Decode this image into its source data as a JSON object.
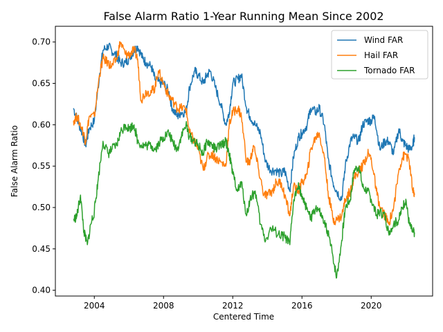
{
  "chart_data": {
    "type": "line",
    "title": "False Alarm Ratio 1-Year Running Mean Since 2002",
    "xlabel": "Centered Time",
    "ylabel": "False Alarm Ratio",
    "xlim": [
      2001.75,
      2023.55
    ],
    "ylim": [
      0.393,
      0.719
    ],
    "x_ticks": [
      2004,
      2008,
      2012,
      2016,
      2020
    ],
    "y_ticks": [
      0.4,
      0.45,
      0.5,
      0.55,
      0.6,
      0.65,
      0.7
    ],
    "y_tick_labels": [
      "0.40",
      "0.45",
      "0.50",
      "0.55",
      "0.60",
      "0.65",
      "0.70"
    ],
    "grid": false,
    "legend": "top-right",
    "series": [
      {
        "name": "Wind FAR",
        "color": "#1f77b4",
        "points": [
          [
            2002.8,
            0.62
          ],
          [
            2003.0,
            0.607
          ],
          [
            2003.3,
            0.59
          ],
          [
            2003.5,
            0.575
          ],
          [
            2003.7,
            0.595
          ],
          [
            2004.0,
            0.605
          ],
          [
            2004.3,
            0.66
          ],
          [
            2004.5,
            0.69
          ],
          [
            2004.8,
            0.695
          ],
          [
            2005.0,
            0.69
          ],
          [
            2005.3,
            0.683
          ],
          [
            2005.5,
            0.675
          ],
          [
            2005.8,
            0.675
          ],
          [
            2006.0,
            0.68
          ],
          [
            2006.3,
            0.69
          ],
          [
            2006.5,
            0.695
          ],
          [
            2006.8,
            0.68
          ],
          [
            2007.0,
            0.675
          ],
          [
            2007.3,
            0.67
          ],
          [
            2007.5,
            0.655
          ],
          [
            2007.8,
            0.65
          ],
          [
            2008.0,
            0.65
          ],
          [
            2008.3,
            0.64
          ],
          [
            2008.5,
            0.62
          ],
          [
            2008.8,
            0.61
          ],
          [
            2009.0,
            0.615
          ],
          [
            2009.3,
            0.615
          ],
          [
            2009.5,
            0.645
          ],
          [
            2009.8,
            0.665
          ],
          [
            2010.0,
            0.66
          ],
          [
            2010.3,
            0.65
          ],
          [
            2010.5,
            0.66
          ],
          [
            2010.7,
            0.665
          ],
          [
            2011.0,
            0.645
          ],
          [
            2011.3,
            0.625
          ],
          [
            2011.6,
            0.6
          ],
          [
            2011.8,
            0.615
          ],
          [
            2012.0,
            0.65
          ],
          [
            2012.3,
            0.655
          ],
          [
            2012.5,
            0.66
          ],
          [
            2012.8,
            0.62
          ],
          [
            2013.0,
            0.61
          ],
          [
            2013.3,
            0.6
          ],
          [
            2013.6,
            0.59
          ],
          [
            2013.9,
            0.555
          ],
          [
            2014.2,
            0.545
          ],
          [
            2014.5,
            0.545
          ],
          [
            2014.8,
            0.54
          ],
          [
            2015.0,
            0.545
          ],
          [
            2015.3,
            0.52
          ],
          [
            2015.5,
            0.56
          ],
          [
            2015.8,
            0.585
          ],
          [
            2016.0,
            0.59
          ],
          [
            2016.3,
            0.6
          ],
          [
            2016.5,
            0.62
          ],
          [
            2016.8,
            0.615
          ],
          [
            2017.0,
            0.62
          ],
          [
            2017.3,
            0.6
          ],
          [
            2017.5,
            0.56
          ],
          [
            2017.8,
            0.53
          ],
          [
            2018.0,
            0.52
          ],
          [
            2018.3,
            0.51
          ],
          [
            2018.5,
            0.55
          ],
          [
            2018.8,
            0.58
          ],
          [
            2019.0,
            0.585
          ],
          [
            2019.3,
            0.58
          ],
          [
            2019.5,
            0.6
          ],
          [
            2019.8,
            0.605
          ],
          [
            2020.0,
            0.605
          ],
          [
            2020.2,
            0.61
          ],
          [
            2020.5,
            0.57
          ],
          [
            2020.8,
            0.58
          ],
          [
            2021.0,
            0.58
          ],
          [
            2021.3,
            0.565
          ],
          [
            2021.6,
            0.595
          ],
          [
            2021.8,
            0.58
          ],
          [
            2022.0,
            0.575
          ],
          [
            2022.2,
            0.57
          ],
          [
            2022.4,
            0.575
          ],
          [
            2022.5,
            0.585
          ]
        ]
      },
      {
        "name": "Hail FAR",
        "color": "#ff7f0e",
        "points": [
          [
            2002.8,
            0.605
          ],
          [
            2003.0,
            0.61
          ],
          [
            2003.3,
            0.595
          ],
          [
            2003.5,
            0.58
          ],
          [
            2003.7,
            0.61
          ],
          [
            2004.0,
            0.61
          ],
          [
            2004.3,
            0.66
          ],
          [
            2004.5,
            0.68
          ],
          [
            2004.8,
            0.675
          ],
          [
            2005.0,
            0.67
          ],
          [
            2005.3,
            0.68
          ],
          [
            2005.5,
            0.7
          ],
          [
            2005.8,
            0.685
          ],
          [
            2006.0,
            0.685
          ],
          [
            2006.3,
            0.69
          ],
          [
            2006.5,
            0.68
          ],
          [
            2006.7,
            0.63
          ],
          [
            2007.0,
            0.64
          ],
          [
            2007.3,
            0.64
          ],
          [
            2007.5,
            0.645
          ],
          [
            2007.7,
            0.665
          ],
          [
            2008.0,
            0.65
          ],
          [
            2008.3,
            0.635
          ],
          [
            2008.5,
            0.63
          ],
          [
            2008.8,
            0.62
          ],
          [
            2009.0,
            0.62
          ],
          [
            2009.3,
            0.62
          ],
          [
            2009.5,
            0.59
          ],
          [
            2009.8,
            0.58
          ],
          [
            2010.0,
            0.57
          ],
          [
            2010.3,
            0.545
          ],
          [
            2010.5,
            0.56
          ],
          [
            2010.8,
            0.565
          ],
          [
            2011.0,
            0.56
          ],
          [
            2011.3,
            0.555
          ],
          [
            2011.6,
            0.55
          ],
          [
            2011.8,
            0.6
          ],
          [
            2012.0,
            0.615
          ],
          [
            2012.3,
            0.62
          ],
          [
            2012.5,
            0.61
          ],
          [
            2012.8,
            0.555
          ],
          [
            2013.0,
            0.555
          ],
          [
            2013.2,
            0.575
          ],
          [
            2013.5,
            0.545
          ],
          [
            2013.8,
            0.515
          ],
          [
            2014.0,
            0.515
          ],
          [
            2014.3,
            0.52
          ],
          [
            2014.5,
            0.53
          ],
          [
            2014.8,
            0.53
          ],
          [
            2015.0,
            0.515
          ],
          [
            2015.3,
            0.49
          ],
          [
            2015.5,
            0.525
          ],
          [
            2015.8,
            0.52
          ],
          [
            2016.0,
            0.53
          ],
          [
            2016.3,
            0.54
          ],
          [
            2016.5,
            0.57
          ],
          [
            2016.8,
            0.585
          ],
          [
            2017.0,
            0.59
          ],
          [
            2017.3,
            0.56
          ],
          [
            2017.5,
            0.52
          ],
          [
            2017.8,
            0.485
          ],
          [
            2018.0,
            0.485
          ],
          [
            2018.3,
            0.49
          ],
          [
            2018.5,
            0.51
          ],
          [
            2018.8,
            0.52
          ],
          [
            2019.0,
            0.535
          ],
          [
            2019.3,
            0.545
          ],
          [
            2019.5,
            0.55
          ],
          [
            2019.8,
            0.565
          ],
          [
            2020.0,
            0.56
          ],
          [
            2020.3,
            0.52
          ],
          [
            2020.5,
            0.5
          ],
          [
            2020.8,
            0.49
          ],
          [
            2021.0,
            0.48
          ],
          [
            2021.3,
            0.5
          ],
          [
            2021.6,
            0.545
          ],
          [
            2021.8,
            0.56
          ],
          [
            2022.0,
            0.565
          ],
          [
            2022.2,
            0.555
          ],
          [
            2022.4,
            0.52
          ],
          [
            2022.5,
            0.515
          ]
        ]
      },
      {
        "name": "Tornado FAR",
        "color": "#2ca02c",
        "points": [
          [
            2002.8,
            0.485
          ],
          [
            2003.0,
            0.49
          ],
          [
            2003.2,
            0.515
          ],
          [
            2003.4,
            0.47
          ],
          [
            2003.6,
            0.455
          ],
          [
            2003.8,
            0.48
          ],
          [
            2004.0,
            0.495
          ],
          [
            2004.2,
            0.53
          ],
          [
            2004.5,
            0.58
          ],
          [
            2004.8,
            0.565
          ],
          [
            2005.0,
            0.57
          ],
          [
            2005.3,
            0.575
          ],
          [
            2005.5,
            0.59
          ],
          [
            2005.8,
            0.6
          ],
          [
            2006.0,
            0.595
          ],
          [
            2006.3,
            0.6
          ],
          [
            2006.5,
            0.58
          ],
          [
            2006.8,
            0.575
          ],
          [
            2007.0,
            0.575
          ],
          [
            2007.3,
            0.575
          ],
          [
            2007.5,
            0.57
          ],
          [
            2007.8,
            0.58
          ],
          [
            2008.0,
            0.585
          ],
          [
            2008.3,
            0.59
          ],
          [
            2008.5,
            0.58
          ],
          [
            2008.8,
            0.57
          ],
          [
            2009.0,
            0.585
          ],
          [
            2009.3,
            0.6
          ],
          [
            2009.5,
            0.585
          ],
          [
            2009.8,
            0.58
          ],
          [
            2010.0,
            0.575
          ],
          [
            2010.3,
            0.565
          ],
          [
            2010.5,
            0.58
          ],
          [
            2010.8,
            0.575
          ],
          [
            2011.0,
            0.57
          ],
          [
            2011.3,
            0.575
          ],
          [
            2011.6,
            0.58
          ],
          [
            2011.8,
            0.565
          ],
          [
            2012.0,
            0.54
          ],
          [
            2012.3,
            0.52
          ],
          [
            2012.5,
            0.53
          ],
          [
            2012.8,
            0.49
          ],
          [
            2013.0,
            0.51
          ],
          [
            2013.3,
            0.52
          ],
          [
            2013.6,
            0.48
          ],
          [
            2013.9,
            0.46
          ],
          [
            2014.2,
            0.475
          ],
          [
            2014.5,
            0.47
          ],
          [
            2014.8,
            0.465
          ],
          [
            2015.0,
            0.465
          ],
          [
            2015.3,
            0.455
          ],
          [
            2015.5,
            0.505
          ],
          [
            2015.8,
            0.53
          ],
          [
            2016.0,
            0.51
          ],
          [
            2016.3,
            0.5
          ],
          [
            2016.5,
            0.485
          ],
          [
            2016.8,
            0.5
          ],
          [
            2017.0,
            0.495
          ],
          [
            2017.3,
            0.48
          ],
          [
            2017.5,
            0.47
          ],
          [
            2017.8,
            0.44
          ],
          [
            2018.0,
            0.415
          ],
          [
            2018.3,
            0.46
          ],
          [
            2018.5,
            0.5
          ],
          [
            2018.8,
            0.51
          ],
          [
            2019.0,
            0.545
          ],
          [
            2019.3,
            0.55
          ],
          [
            2019.5,
            0.525
          ],
          [
            2019.8,
            0.52
          ],
          [
            2020.0,
            0.51
          ],
          [
            2020.3,
            0.49
          ],
          [
            2020.5,
            0.495
          ],
          [
            2020.8,
            0.49
          ],
          [
            2021.0,
            0.47
          ],
          [
            2021.3,
            0.48
          ],
          [
            2021.6,
            0.485
          ],
          [
            2021.8,
            0.5
          ],
          [
            2022.0,
            0.51
          ],
          [
            2022.2,
            0.48
          ],
          [
            2022.4,
            0.47
          ],
          [
            2022.5,
            0.47
          ]
        ]
      }
    ]
  }
}
